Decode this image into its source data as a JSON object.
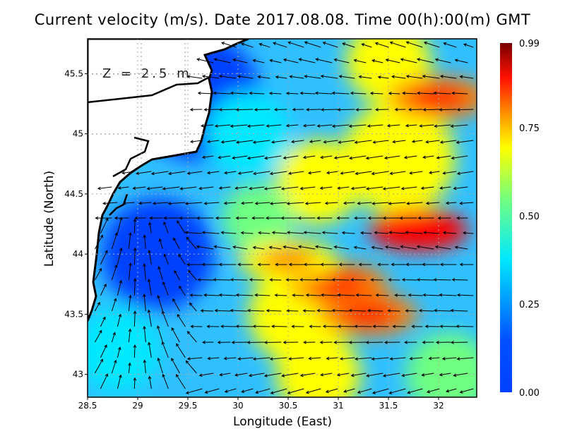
{
  "chart_data": {
    "type": "heatmap",
    "title": "Current velocity (m/s). Date 2017.08.08. Time 00(h):00(m) GMT",
    "annotation": "Z = 2.5 m",
    "xlabel": "Longitude (East)",
    "ylabel": "Latitude (North)",
    "xlim": [
      28.5,
      32.38
    ],
    "ylim": [
      42.81,
      45.79
    ],
    "xticks": [
      "28.5",
      "29",
      "29.5",
      "30",
      "30.5",
      "31",
      "31.5",
      "32"
    ],
    "yticks": [
      "43",
      "43.5",
      "44",
      "44.5",
      "45",
      "45.5"
    ],
    "grid": true,
    "overlay": "current velocity vectors (arrows)",
    "colorbar": {
      "range": [
        0.0,
        0.99
      ],
      "ticks": [
        "0.00",
        "0.25",
        "0.50",
        "0.75",
        "0.99"
      ],
      "colormap": [
        "#0040ff",
        "#00e8ff",
        "#70ff80",
        "#ffff00",
        "#ff8000",
        "#ff0000",
        "#780000"
      ],
      "placement": "right"
    },
    "hotspots": [
      {
        "lon": 31.8,
        "lat": 44.2,
        "speed": 0.9
      },
      {
        "lon": 31.0,
        "lat": 43.75,
        "speed": 0.8
      },
      {
        "lon": 31.3,
        "lat": 43.5,
        "speed": 0.75
      },
      {
        "lon": 30.5,
        "lat": 43.95,
        "speed": 0.72
      },
      {
        "lon": 32.0,
        "lat": 45.3,
        "speed": 0.75
      }
    ],
    "land_color": "#ffffff"
  }
}
